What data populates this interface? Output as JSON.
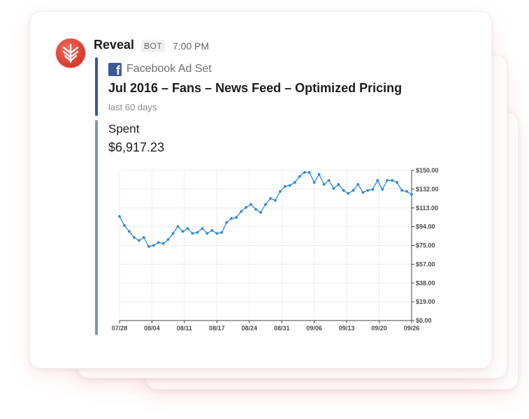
{
  "message": {
    "bot_name": "Reveal",
    "badge": "BOT",
    "time": "7:00 PM",
    "avatar_icon": "reveal-logo-icon",
    "avatar_color": "#e0463a"
  },
  "attachment": {
    "author_icon": "facebook-icon",
    "author": "Facebook Ad Set",
    "title": "Jul 2016 – Fans – News Feed – Optimized Pricing",
    "subtitle": "last 60 days",
    "accent_color": "#3b5998"
  },
  "metric": {
    "label": "Spent",
    "value": "$6,917.23"
  },
  "chart_data": {
    "type": "line",
    "x_tick_labels": [
      "07/28",
      "08/04",
      "08/11",
      "08/17",
      "08/24",
      "08/31",
      "09/06",
      "09/13",
      "09/20",
      "09/26"
    ],
    "y_tick_labels": [
      "$0.00",
      "$19.00",
      "$38.00",
      "$57.00",
      "$75.00",
      "$94.00",
      "$113.00",
      "$132.00",
      "$150.00"
    ],
    "ylim": [
      0,
      150
    ],
    "y_axis_side": "right",
    "grid": true,
    "line_color": "#2c8ad8",
    "series": [
      {
        "values": [
          104,
          95,
          89,
          83,
          80,
          83,
          74,
          75,
          78,
          77,
          81,
          87,
          94,
          89,
          92,
          87,
          88,
          92,
          87,
          90,
          87,
          88,
          98,
          102,
          103,
          109,
          113,
          116,
          111,
          108,
          116,
          122,
          120,
          129,
          134,
          135,
          138,
          144,
          148,
          148,
          138,
          146,
          136,
          140,
          132,
          136,
          130,
          127,
          130,
          136,
          128,
          130,
          131,
          140,
          131,
          140,
          140,
          138,
          130,
          129,
          126
        ]
      }
    ]
  }
}
